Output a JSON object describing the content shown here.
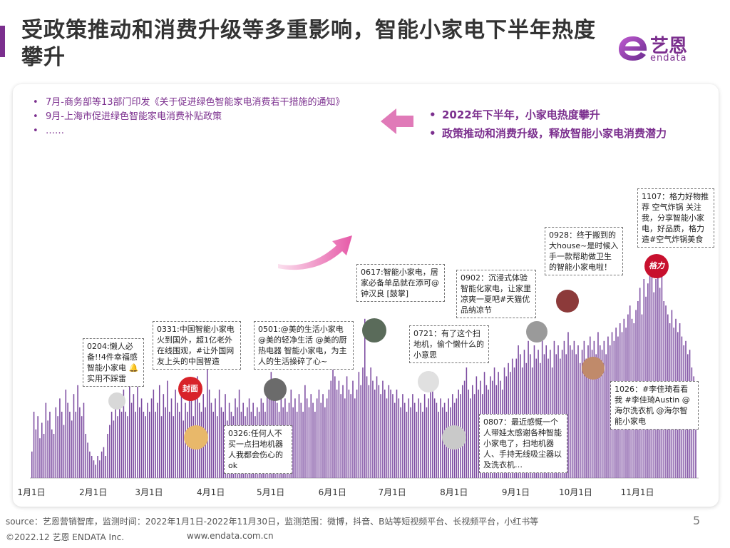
{
  "title": "受政策推动和消费升级等多重影响，智能小家电下半年热度攀升",
  "logo": {
    "cn": "艺恩",
    "en": "endata"
  },
  "policy_notes": [
    "7月-商务部等13部门印发《关于促进绿色智能家电消费若干措施的通知》",
    "9月-上海市促进绿色智能家电消费补贴政策",
    "……"
  ],
  "summary": [
    "2022年下半年，小家电热度攀升",
    "政策推动和消费升级，释放智能小家电消费潜力"
  ],
  "callouts": [
    {
      "text": "0204:懒人必备!!4件幸福感智能小家电 🔔实用不踩雷"
    },
    {
      "text": "0331:中国智能小家电火到国外，超1亿老外在线围观，#让外国网友上头的中国智造"
    },
    {
      "text": "0326:任何人不买一点扫地机器人我都会伤心的ok"
    },
    {
      "text": "0501:@美的生活小家电 @美的轻净生活 @美的厨热电器 智能小家电，为主人的生活操碎了心~"
    },
    {
      "text": "0617:智能小家电，居家必备单品就在添可@钟汉良 [鼓掌]"
    },
    {
      "text": "0721：有了这个扫地机，偷个懒什么的小意思"
    },
    {
      "text": "0807：最近感慨一个人带娃太感谢各种智能小家电了，扫地机器人、手持无线吸尘器以及洗衣机…"
    },
    {
      "text": "0902：沉浸式体验智能化家电，让家里凉爽一夏吧#天猫优品纳凉节"
    },
    {
      "text": "0928：终于搬到的大house~是时候入手一款帮助做卫生的智能小家电啦！"
    },
    {
      "text": "1026：#李佳琦看看我 #李佳琦Austin @海尔洗衣机 @海尔智能小家电"
    },
    {
      "text": "1107：格力好物推荐 空气炸锅 关注我，分享智能小家电，好品质，格力造#空气炸锅美食"
    }
  ],
  "badges": {
    "fengmian": "封面",
    "geli": "格力"
  },
  "chart_data": {
    "type": "bar",
    "title": "",
    "xlabel": "",
    "ylabel": "",
    "x_range": [
      "2022-01-01",
      "2022-11-30"
    ],
    "xticks": [
      "1月1日",
      "2月1日",
      "3月1日",
      "4月1日",
      "5月1日",
      "6月1日",
      "7月1日",
      "8月1日",
      "9月1日",
      "10月1日",
      "11月1日"
    ],
    "color": "#7b4aa0",
    "grid": false,
    "legend": "none",
    "monthly_level": [
      {
        "month": "1月",
        "values": [
          0.12,
          0.3,
          0.22,
          0.28,
          0.18,
          0.25,
          0.2,
          0.34,
          0.26,
          0.3,
          0.22,
          0.2,
          0.32,
          0.28,
          0.36,
          0.3,
          0.24,
          0.4,
          0.34,
          0.3,
          0.26,
          0.38,
          0.3,
          0.42,
          0.32,
          0.28,
          0.34,
          0.2,
          0.16,
          0.12,
          0.1
        ]
      },
      {
        "month": "2月",
        "values": [
          0.08,
          0.06,
          0.1,
          0.08,
          0.12,
          0.14,
          0.1,
          0.2,
          0.24,
          0.3,
          0.26,
          0.34,
          0.28,
          0.36,
          0.3,
          0.4,
          0.3,
          0.28,
          0.44,
          0.34,
          0.38,
          0.3,
          0.42,
          0.32,
          0.36,
          0.3,
          0.28,
          0.34
        ]
      },
      {
        "month": "3月",
        "values": [
          0.3,
          0.36,
          0.4,
          0.3,
          0.34,
          0.42,
          0.28,
          0.38,
          0.32,
          0.44,
          0.3,
          0.36,
          0.28,
          0.4,
          0.34,
          0.3,
          0.38,
          0.26,
          0.34,
          0.3,
          0.4,
          0.36,
          0.28,
          0.42,
          0.46,
          0.34,
          0.3,
          0.38,
          0.32,
          0.52,
          0.4
        ]
      },
      {
        "month": "4月",
        "values": [
          0.34,
          0.3,
          0.36,
          0.28,
          0.4,
          0.32,
          0.3,
          0.38,
          0.26,
          0.34,
          0.3,
          0.28,
          0.36,
          0.32,
          0.4,
          0.3,
          0.34,
          0.28,
          0.32,
          0.36,
          0.3,
          0.34,
          0.28,
          0.32,
          0.3,
          0.36,
          0.34,
          0.3,
          0.38,
          0.42
        ]
      },
      {
        "month": "5月",
        "values": [
          0.48,
          0.4,
          0.36,
          0.34,
          0.3,
          0.38,
          0.32,
          0.36,
          0.3,
          0.34,
          0.4,
          0.32,
          0.36,
          0.3,
          0.38,
          0.34,
          0.3,
          0.42,
          0.36,
          0.32,
          0.38,
          0.34,
          0.3,
          0.36,
          0.4,
          0.34,
          0.38,
          0.32,
          0.36,
          0.4,
          0.44
        ]
      },
      {
        "month": "6月",
        "values": [
          0.52,
          0.46,
          0.4,
          0.44,
          0.38,
          0.42,
          0.36,
          0.46,
          0.4,
          0.38,
          0.44,
          0.36,
          0.4,
          0.48,
          0.42,
          0.5,
          0.72,
          0.46,
          0.42,
          0.5,
          0.44,
          0.4,
          0.46,
          0.42,
          0.38,
          0.44,
          0.4,
          0.36,
          0.42,
          0.4
        ]
      },
      {
        "month": "7月",
        "values": [
          0.38,
          0.34,
          0.4,
          0.36,
          0.32,
          0.38,
          0.34,
          0.3,
          0.36,
          0.32,
          0.38,
          0.34,
          0.3,
          0.36,
          0.34,
          0.3,
          0.38,
          0.32,
          0.36,
          0.42,
          0.48,
          0.36,
          0.34,
          0.3,
          0.36,
          0.32,
          0.34,
          0.3,
          0.36,
          0.32,
          0.38
        ]
      },
      {
        "month": "8月",
        "values": [
          0.34,
          0.36,
          0.4,
          0.38,
          0.42,
          0.44,
          0.5,
          0.4,
          0.36,
          0.42,
          0.38,
          0.46,
          0.4,
          0.44,
          0.38,
          0.48,
          0.42,
          0.4,
          0.46,
          0.44,
          0.5,
          0.42,
          0.48,
          0.44,
          0.4,
          0.5,
          0.46,
          0.52,
          0.48,
          0.54,
          0.5
        ]
      },
      {
        "month": "9月",
        "values": [
          0.54,
          0.6,
          0.56,
          0.5,
          0.58,
          0.52,
          0.62,
          0.56,
          0.5,
          0.6,
          0.54,
          0.58,
          0.52,
          0.64,
          0.56,
          0.6,
          0.54,
          0.58,
          0.5,
          0.62,
          0.56,
          0.6,
          0.54,
          0.58,
          0.62,
          0.56,
          0.66,
          0.6,
          0.58,
          0.62
        ]
      },
      {
        "month": "10月",
        "values": [
          0.56,
          0.6,
          0.52,
          0.58,
          0.62,
          0.54,
          0.6,
          0.64,
          0.58,
          0.62,
          0.56,
          0.66,
          0.6,
          0.58,
          0.62,
          0.56,
          0.64,
          0.6,
          0.66,
          0.62,
          0.68,
          0.64,
          0.7,
          0.66,
          0.72,
          0.68,
          0.74,
          0.78,
          0.72,
          0.7,
          0.76
        ]
      },
      {
        "month": "11月",
        "values": [
          0.8,
          0.86,
          0.74,
          0.9,
          0.82,
          0.88,
          0.92,
          0.96,
          0.84,
          0.9,
          0.98,
          0.86,
          0.92,
          0.8,
          0.78,
          0.74,
          0.7,
          0.76,
          0.68,
          0.72,
          0.66,
          0.7,
          0.64,
          0.6,
          0.62,
          0.56,
          0.58,
          0.5,
          0.46,
          0.42
        ]
      }
    ]
  },
  "source": "source：艺恩营销智库，监测时间：2022年1月1日-2022年11月30日，监测范围：微博，抖音、B站等短视频平台、长视频平台，小红书等",
  "page_number": "5",
  "copyright": "©2022.12 艺恩 ENDATA Inc.",
  "url": "www.endata.com.cn"
}
